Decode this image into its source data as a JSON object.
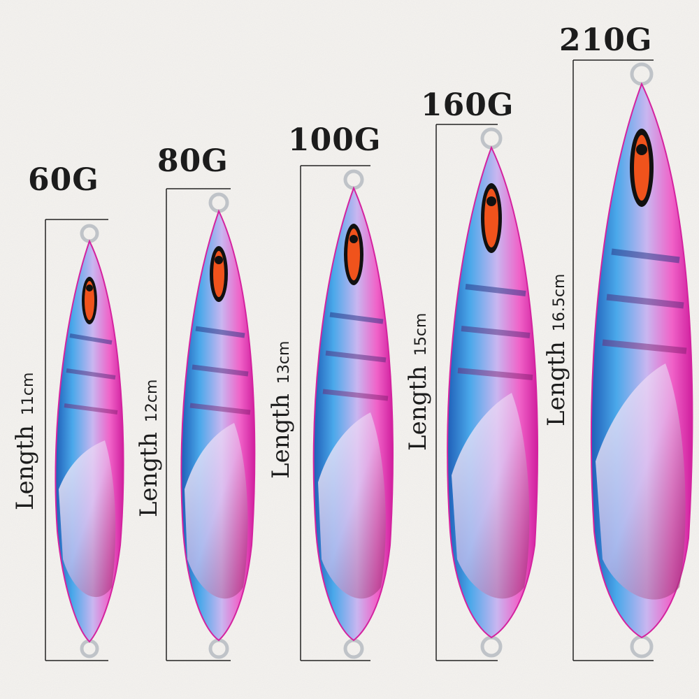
{
  "colors": {
    "background": "#f3f1ee",
    "ink": "#1c1c1c",
    "body_blue": "#3a8fd8",
    "body_pink": "#e535b5",
    "eye_orange": "#f0531c"
  },
  "jigs": [
    {
      "weight": "60G",
      "length_word": "Length",
      "length_value": "11cm"
    },
    {
      "weight": "80G",
      "length_word": "Length",
      "length_value": "12cm"
    },
    {
      "weight": "100G",
      "length_word": "Length",
      "length_value": "13cm"
    },
    {
      "weight": "160G",
      "length_word": "Length",
      "length_value": "15cm"
    },
    {
      "weight": "210G",
      "length_word": "Length",
      "length_value": "16.5cm"
    }
  ]
}
